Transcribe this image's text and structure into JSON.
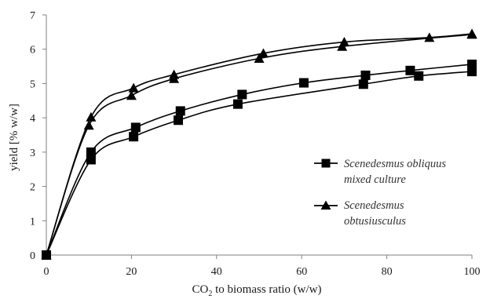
{
  "chart_data": {
    "type": "line",
    "title": "",
    "xlabel": {
      "prefix": "CO",
      "sub": "2",
      "suffix": " to biomass ratio (w/w)"
    },
    "ylabel": "yield [% w/w]",
    "xlim": [
      0,
      100
    ],
    "ylim": [
      0,
      7
    ],
    "xticks": [
      0,
      20,
      40,
      60,
      80,
      100
    ],
    "yticks": [
      0,
      1,
      2,
      3,
      4,
      5,
      6,
      7
    ],
    "grid": false,
    "legend_position": "right",
    "series": [
      {
        "legend_lines": [
          "Scenedesmus obliquus",
          "mixed culture"
        ],
        "marker": "square",
        "color": "#000000",
        "upper": {
          "x": [
            0,
            10.5,
            21,
            31.5,
            46,
            60.5,
            75,
            85.5,
            100
          ],
          "y": [
            0,
            3.0,
            3.72,
            4.2,
            4.68,
            5.02,
            5.24,
            5.38,
            5.56
          ]
        },
        "lower": {
          "x": [
            0,
            10.5,
            20.5,
            31,
            45,
            74.5,
            87.5,
            100
          ],
          "y": [
            0,
            2.78,
            3.45,
            3.93,
            4.4,
            4.98,
            5.22,
            5.35
          ]
        }
      },
      {
        "legend_lines": [
          "Scenedesmus",
          "obtusiusculus"
        ],
        "marker": "triangle",
        "color": "#000000",
        "upper": {
          "x": [
            0,
            10.5,
            20.5,
            30,
            51,
            70,
            90,
            100
          ],
          "y": [
            0,
            4.02,
            4.87,
            5.26,
            5.88,
            6.21,
            6.34,
            6.45
          ]
        },
        "lower": {
          "x": [
            0,
            10,
            20,
            30,
            50,
            69.5,
            100
          ],
          "y": [
            0,
            3.78,
            4.65,
            5.14,
            5.73,
            6.08,
            6.43
          ]
        }
      }
    ]
  }
}
